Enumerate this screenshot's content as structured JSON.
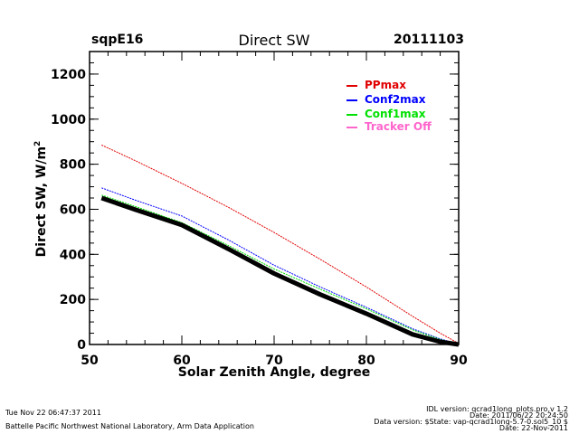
{
  "header": {
    "site": "sqpE16",
    "title": "Direct SW",
    "date": "20111103"
  },
  "footer": {
    "timestamp": "Tue Nov 22 06:47:37 2011",
    "organization": "Battelle Pacific Northwest National Laboratory, Arm Data Application",
    "idl_version": "IDL version: qcrad1long_plots.pro,v 1.2",
    "idl_date": "Date: 2011/06/22 20:24:50",
    "data_version": "Data version: $State: vap-qcrad1long-5.7-0.sol5_10 $",
    "data_date": "Date: 22-Nov-2011"
  },
  "chart_data": {
    "type": "line",
    "title": "Direct SW",
    "xlabel": "Solar Zenith Angle, degree",
    "ylabel": "Direct SW, W/m",
    "ylabel_superscript": "2",
    "xlim": [
      50,
      90
    ],
    "ylim": [
      0,
      1300
    ],
    "xticks": [
      50,
      60,
      70,
      80,
      90
    ],
    "xtick_labels": [
      "50",
      "60",
      "70",
      "80",
      "90"
    ],
    "yticks": [
      0,
      200,
      400,
      600,
      800,
      1000,
      1200
    ],
    "ytick_labels": [
      "0",
      "200",
      "400",
      "600",
      "800",
      "1000",
      "1200"
    ],
    "x_minor_step": 2,
    "y_minor_step": 50,
    "grid": false,
    "legend_position": "top-right",
    "x": [
      51.3,
      55,
      60,
      65,
      70,
      75,
      80,
      85,
      88,
      90
    ],
    "series": [
      {
        "name": "PPmax",
        "color": "#e00000",
        "in_legend": true,
        "values": [
          885,
          815,
          715,
          610,
          497,
          378,
          255,
          125,
          50,
          5
        ]
      },
      {
        "name": "Conf2max",
        "color": "#0000ff",
        "in_legend": true,
        "values": [
          695,
          640,
          570,
          465,
          352,
          255,
          165,
          70,
          25,
          2
        ]
      },
      {
        "name": "Conf1max",
        "color": "#00e000",
        "in_legend": true,
        "values": [
          663,
          612,
          541,
          440,
          335,
          245,
          158,
          65,
          22,
          3
        ]
      },
      {
        "name": "Tracker Off",
        "color": "#ff66cc",
        "in_legend": true,
        "values": []
      },
      {
        "name": "Measured",
        "color": "#000000",
        "in_legend": false,
        "values": [
          650,
          598,
          530,
          425,
          315,
          222,
          137,
          45,
          12,
          0
        ]
      }
    ]
  }
}
